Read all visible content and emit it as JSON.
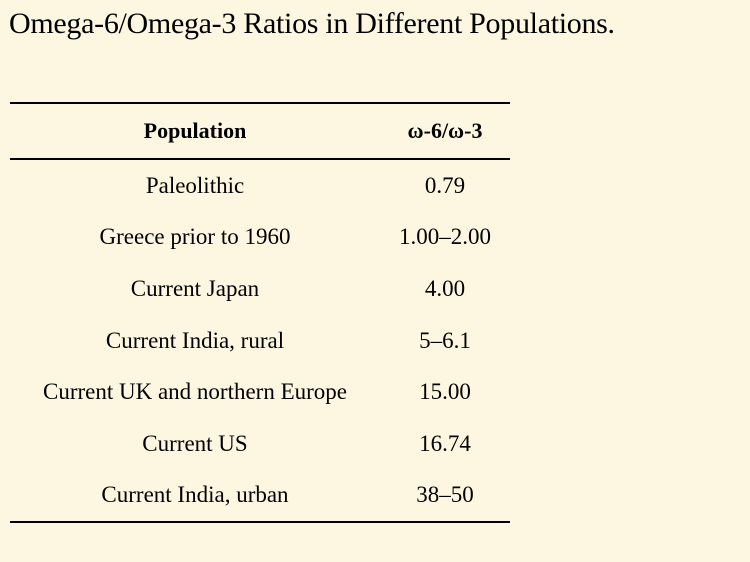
{
  "title": "Omega-6/Omega-3 Ratios in Different Populations.",
  "table": {
    "headers": [
      "Population",
      "ω-6/ω-3"
    ],
    "rows": [
      [
        "Paleolithic",
        "0.79"
      ],
      [
        "Greece prior to 1960",
        "1.00–2.00"
      ],
      [
        "Current Japan",
        "4.00"
      ],
      [
        "Current India, rural",
        "5–6.1"
      ],
      [
        "Current UK and northern Europe",
        "15.00"
      ],
      [
        "Current US",
        "16.74"
      ],
      [
        "Current India, urban",
        "38–50"
      ]
    ]
  }
}
